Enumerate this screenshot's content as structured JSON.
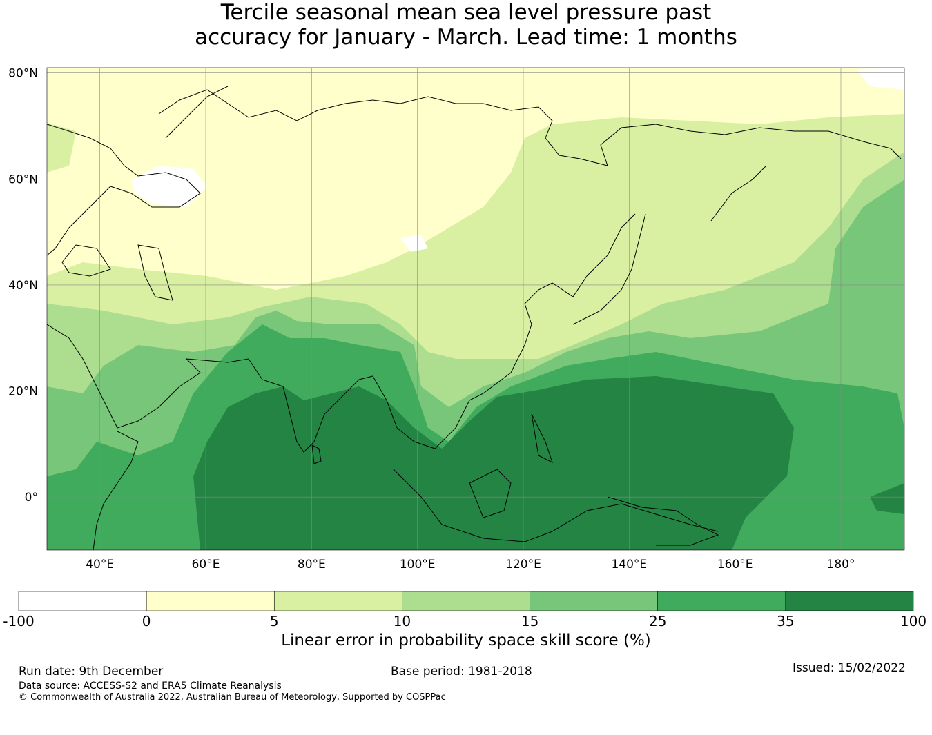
{
  "title": {
    "line1": "Tercile seasonal mean sea level pressure past",
    "line2": "accuracy for January - March. Lead time: 1 months"
  },
  "map": {
    "lat_labels": [
      {
        "lat": 80,
        "text": "80°N"
      },
      {
        "lat": 60,
        "text": "60°N"
      },
      {
        "lat": 40,
        "text": "40°N"
      },
      {
        "lat": 20,
        "text": "20°N"
      },
      {
        "lat": 0,
        "text": "0°"
      }
    ],
    "lon_labels": [
      {
        "lon": 40,
        "text": "40°E"
      },
      {
        "lon": 60,
        "text": "60°E"
      },
      {
        "lon": 80,
        "text": "80°E"
      },
      {
        "lon": 100,
        "text": "100°E"
      },
      {
        "lon": 120,
        "text": "120°E"
      },
      {
        "lon": 140,
        "text": "140°E"
      },
      {
        "lon": 160,
        "text": "160°E"
      },
      {
        "lon": 180,
        "text": "180°"
      }
    ],
    "extent": {
      "lon_min": 30,
      "lon_max": 192,
      "lat_min": -10,
      "lat_max": 81
    }
  },
  "colorbar": {
    "ticks": [
      "-100",
      "0",
      "5",
      "10",
      "15",
      "25",
      "35",
      "100"
    ],
    "colors": [
      "#ffffff",
      "#ffffcc",
      "#d9f0a3",
      "#addd8e",
      "#78c679",
      "#41ab5d",
      "#238443"
    ],
    "label": "Linear error in probability space skill score (%)"
  },
  "footer": {
    "run_date": "Run date: 9th December",
    "base_period": "Base period: 1981-2018",
    "issued": "Issued: 15/02/2022",
    "data_source": "Data source: ACCESS-S2 and ERA5 Climate Reanalysis",
    "copyright": "© Commonwealth of Australia 2022, Australian Bureau of Meteorology, Supported by COSPPac"
  }
}
